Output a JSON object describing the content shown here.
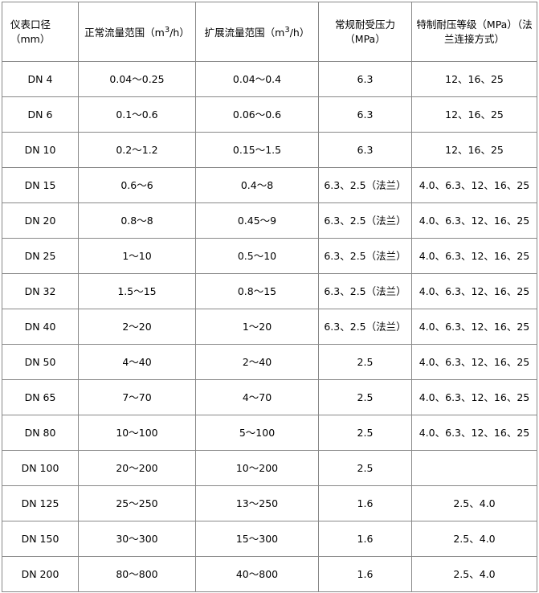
{
  "headers": {
    "size": "仪表口径（mm）",
    "normal_flow": "正常流量范围（m",
    "ext_flow": "扩展流量范围（m",
    "flow_sup": "3",
    "flow_unit": "/h）",
    "pressure": "常规耐受压力（MPa）",
    "special": "特制耐压等级（MPa）（法兰连接方式）"
  },
  "rows": [
    [
      "DN 4",
      "0.04～0.25",
      "0.04～0.4",
      "6.3",
      "12、16、25"
    ],
    [
      "DN 6",
      "0.1～0.6",
      "0.06～0.6",
      "6.3",
      "12、16、25"
    ],
    [
      "DN 10",
      "0.2～1.2",
      "0.15～1.5",
      "6.3",
      "12、16、25"
    ],
    [
      "DN 15",
      "0.6～6",
      "0.4～8",
      "6.3、2.5（法兰）",
      "4.0、6.3、12、16、25"
    ],
    [
      "DN 20",
      "0.8～8",
      "0.45～9",
      "6.3、2.5（法兰）",
      "4.0、6.3、12、16、25"
    ],
    [
      "DN 25",
      "1～10",
      "0.5～10",
      "6.3、2.5（法兰）",
      "4.0、6.3、12、16、25"
    ],
    [
      "DN 32",
      "1.5～15",
      "0.8～15",
      "6.3、2.5（法兰）",
      "4.0、6.3、12、16、25"
    ],
    [
      "DN 40",
      "2～20",
      "1～20",
      "6.3、2.5（法兰）",
      "4.0、6.3、12、16、25"
    ],
    [
      "DN 50",
      "4～40",
      "2～40",
      "2.5",
      "4.0、6.3、12、16、25"
    ],
    [
      "DN 65",
      "7～70",
      "4～70",
      "2.5",
      "4.0、6.3、12、16、25"
    ],
    [
      "DN 80",
      "10～100",
      "5～100",
      "2.5",
      "4.0、6.3、12、16、25"
    ],
    [
      "DN 100",
      "20～200",
      "10～200",
      "2.5",
      ""
    ],
    [
      "DN 125",
      "25～250",
      "13～250",
      "1.6",
      "2.5、4.0"
    ],
    [
      "DN 150",
      "30～300",
      "15～300",
      "1.6",
      "2.5、4.0"
    ],
    [
      "DN 200",
      "80～800",
      "40～800",
      "1.6",
      "2.5、4.0"
    ]
  ]
}
